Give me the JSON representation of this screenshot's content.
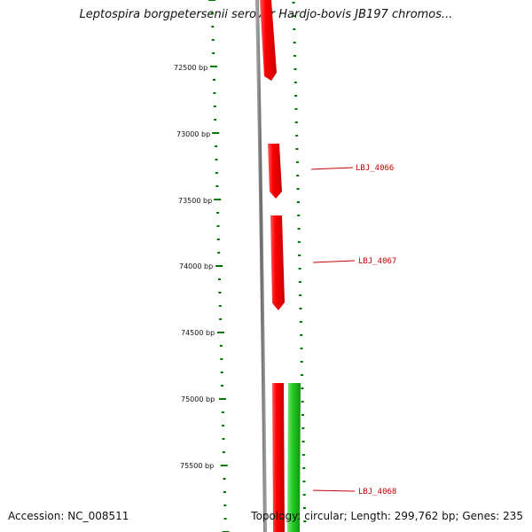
{
  "title": "Leptospira borgpetersenii serovar Hardjo-bovis JB197 chromos...",
  "footer": {
    "accession": "Accession: NC_008511",
    "summary": "Topology: circular; Length: 299,762 bp; Genes: 235"
  },
  "ruler": {
    "labels": [
      "72500 bp",
      "73000 bp",
      "73500 bp",
      "74000 bp",
      "74500 bp",
      "75000 bp",
      "75500 bp"
    ],
    "tick_color": "#007700"
  },
  "genes": [
    {
      "id": "g0",
      "strand": "reverse",
      "color": "#ff0000"
    },
    {
      "id": "g1",
      "strand": "reverse",
      "color": "#ff0000"
    },
    {
      "id": "g2",
      "strand": "reverse",
      "color": "#ff0000"
    },
    {
      "id": "g3",
      "strand": "reverse",
      "color": "#ff0000"
    },
    {
      "id": "g4",
      "strand": "forward",
      "color": "#22cc22"
    }
  ],
  "gene_labels": [
    "LBJ_4066",
    "LBJ_4067",
    "LBJ_4068"
  ],
  "colors": {
    "backbone": "#808080",
    "reverse_gene": "#ff0000",
    "forward_gene": "#22cc22",
    "label": "#c00000"
  }
}
